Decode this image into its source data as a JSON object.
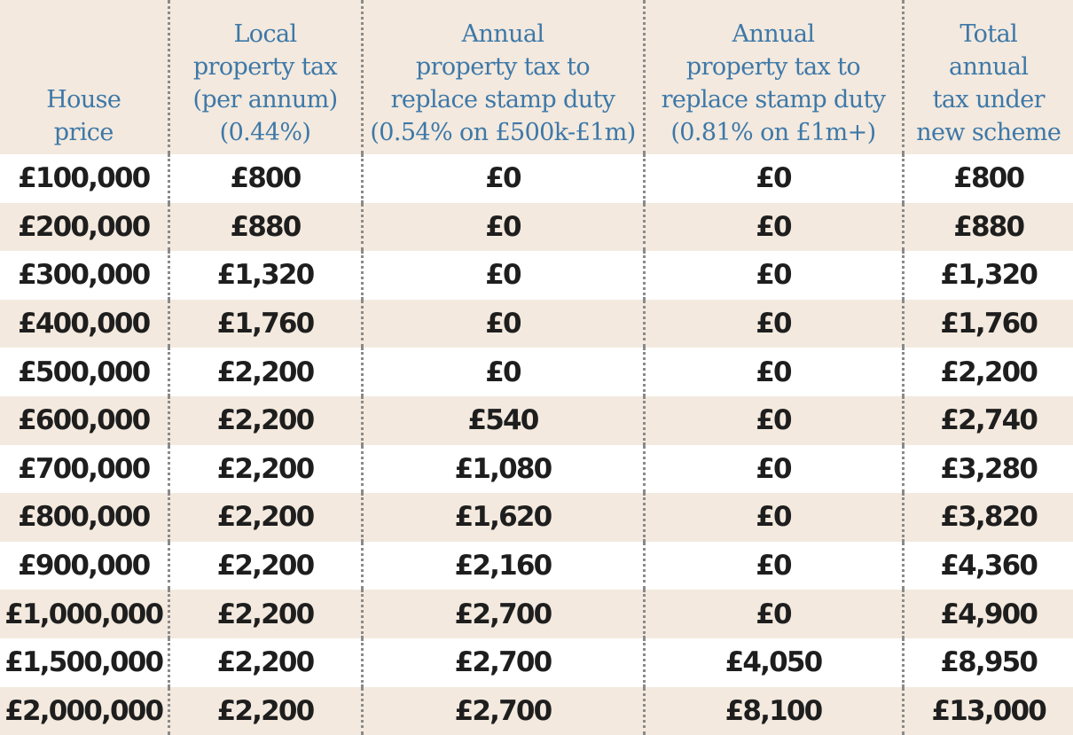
{
  "chart_data": {
    "type": "table",
    "columns": [
      "House price",
      "Local property tax (per annum) (0.44%)",
      "Annual property tax to replace stamp duty (0.54% on £500k-£1m)",
      "Annual property tax to replace stamp duty (0.81% on £1m+)",
      "Total annual tax under new scheme"
    ],
    "header_lines": [
      [
        "House",
        "price"
      ],
      [
        "Local",
        "property tax",
        "(per annum)",
        "(0.44%)"
      ],
      [
        "Annual",
        "property tax to",
        "replace stamp duty",
        "(0.54% on £500k-£1m)"
      ],
      [
        "Annual",
        "property tax to",
        "replace stamp duty",
        "(0.81% on £1m+)"
      ],
      [
        "Total",
        "annual",
        "tax under",
        "new scheme"
      ]
    ],
    "rows": [
      [
        "£100,000",
        "£800",
        "£0",
        "£0",
        "£800"
      ],
      [
        "£200,000",
        "£880",
        "£0",
        "£0",
        "£880"
      ],
      [
        "£300,000",
        "£1,320",
        "£0",
        "£0",
        "£1,320"
      ],
      [
        "£400,000",
        "£1,760",
        "£0",
        "£0",
        "£1,760"
      ],
      [
        "£500,000",
        "£2,200",
        "£0",
        "£0",
        "£2,200"
      ],
      [
        "£600,000",
        "£2,200",
        "£540",
        "£0",
        "£2,740"
      ],
      [
        "£700,000",
        "£2,200",
        "£1,080",
        "£0",
        "£3,280"
      ],
      [
        "£800,000",
        "£2,200",
        "£1,620",
        "£0",
        "£3,820"
      ],
      [
        "£900,000",
        "£2,200",
        "£2,160",
        "£0",
        "£4,360"
      ],
      [
        "£1,000,000",
        "£2,200",
        "£2,700",
        "£0",
        "£4,900"
      ],
      [
        "£1,500,000",
        "£2,200",
        "£2,700",
        "£4,050",
        "£8,950"
      ],
      [
        "£2,000,000",
        "£2,200",
        "£2,700",
        "£8,100",
        "£13,000"
      ]
    ],
    "colors": {
      "header_text": "#3d78a8",
      "band": "#f3e9de",
      "cell_text": "#1e1e1e"
    }
  }
}
